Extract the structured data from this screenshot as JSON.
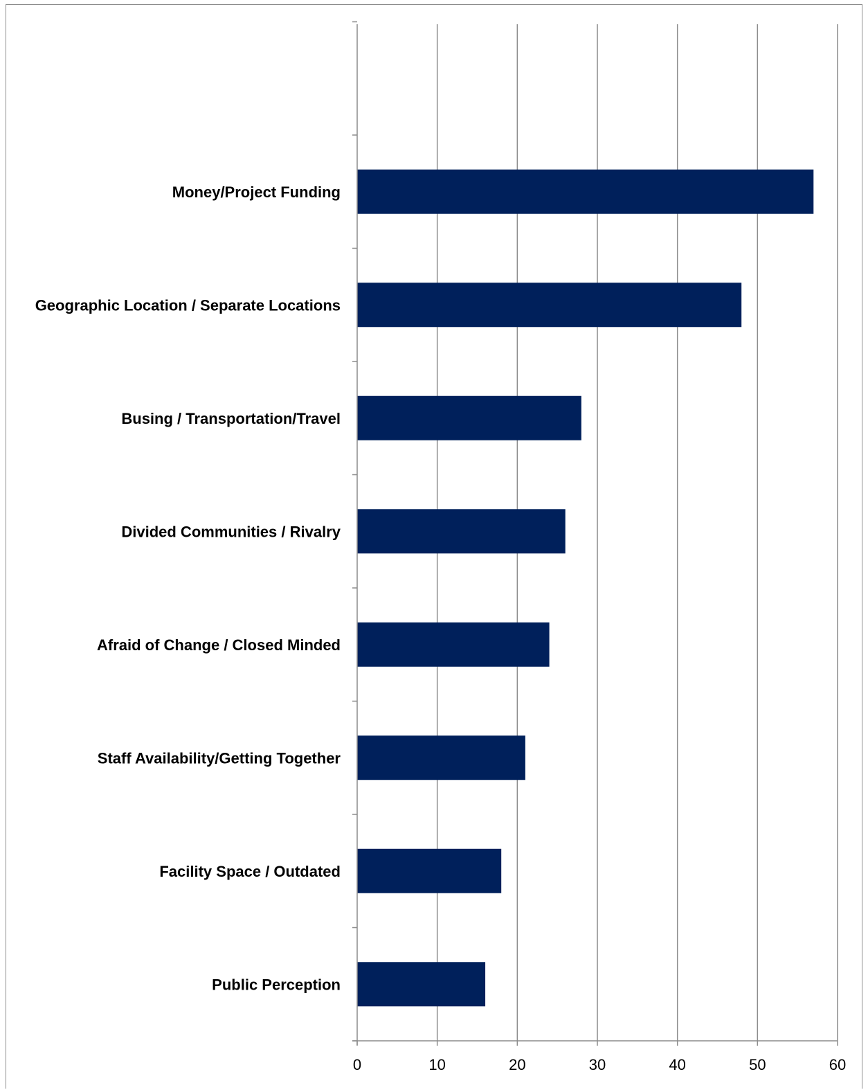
{
  "chart_data": {
    "type": "bar",
    "orientation": "horizontal",
    "title": "",
    "xlabel": "",
    "ylabel": "",
    "categories": [
      "Money/Project Funding",
      "Geographic Location / Separate Locations",
      "Busing / Transportation/Travel",
      "Divided Communities / Rivalry",
      "Afraid of Change / Closed Minded",
      "Staff Availability/Getting Together",
      "Facility Space / Outdated",
      "Public Perception"
    ],
    "values": [
      57,
      48,
      28,
      26,
      24,
      21,
      18,
      16
    ],
    "xlim": [
      0,
      60
    ],
    "x_ticks": [
      0,
      10,
      20,
      30,
      40,
      50,
      60
    ],
    "x_tick_labels": [
      "0",
      "10",
      "20",
      "30",
      "40",
      "50",
      "60"
    ],
    "grid": "vertical major gridlines",
    "legend": "none",
    "bar_color": "#00205b",
    "grid_color": "#8c8c8c"
  }
}
